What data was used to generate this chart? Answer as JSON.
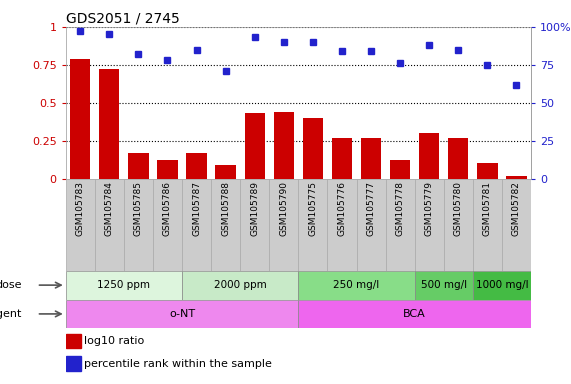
{
  "title": "GDS2051 / 2745",
  "samples": [
    "GSM105783",
    "GSM105784",
    "GSM105785",
    "GSM105786",
    "GSM105787",
    "GSM105788",
    "GSM105789",
    "GSM105790",
    "GSM105775",
    "GSM105776",
    "GSM105777",
    "GSM105778",
    "GSM105779",
    "GSM105780",
    "GSM105781",
    "GSM105782"
  ],
  "log10_ratio": [
    0.79,
    0.72,
    0.17,
    0.12,
    0.17,
    0.09,
    0.43,
    0.44,
    0.4,
    0.27,
    0.27,
    0.12,
    0.3,
    0.27,
    0.1,
    0.02
  ],
  "percentile_rank": [
    97,
    95,
    82,
    78,
    85,
    71,
    93,
    90,
    90,
    84,
    84,
    76,
    88,
    85,
    75,
    62
  ],
  "bar_color": "#cc0000",
  "dot_color": "#2222cc",
  "ylim_left": [
    0,
    1.0
  ],
  "ylim_right": [
    0,
    100
  ],
  "yticks_left": [
    0,
    0.25,
    0.5,
    0.75,
    1.0
  ],
  "yticks_right": [
    0,
    25,
    50,
    75,
    100
  ],
  "yticklabels_left": [
    "0",
    "0.25",
    "0.5",
    "0.75",
    "1"
  ],
  "yticklabels_right": [
    "0",
    "25",
    "50",
    "75",
    "100%"
  ],
  "grid_lines": [
    0.25,
    0.5,
    0.75,
    1.0
  ],
  "dose_groups": [
    {
      "label": "1250 ppm",
      "start": 0,
      "end": 4,
      "color": "#ddf5dd"
    },
    {
      "label": "2000 ppm",
      "start": 4,
      "end": 8,
      "color": "#c8eac8"
    },
    {
      "label": "250 mg/l",
      "start": 8,
      "end": 12,
      "color": "#88dd88"
    },
    {
      "label": "500 mg/l",
      "start": 12,
      "end": 14,
      "color": "#66cc66"
    },
    {
      "label": "1000 mg/l",
      "start": 14,
      "end": 16,
      "color": "#44bb44"
    }
  ],
  "agent_groups": [
    {
      "label": "o-NT",
      "start": 0,
      "end": 8,
      "color": "#ee88ee"
    },
    {
      "label": "BCA",
      "start": 8,
      "end": 16,
      "color": "#ee66ee"
    }
  ],
  "dose_label": "dose",
  "agent_label": "agent",
  "legend_bar_label": "log10 ratio",
  "legend_dot_label": "percentile rank within the sample",
  "sample_bg_color": "#cccccc",
  "plot_bg_color": "#ffffff"
}
